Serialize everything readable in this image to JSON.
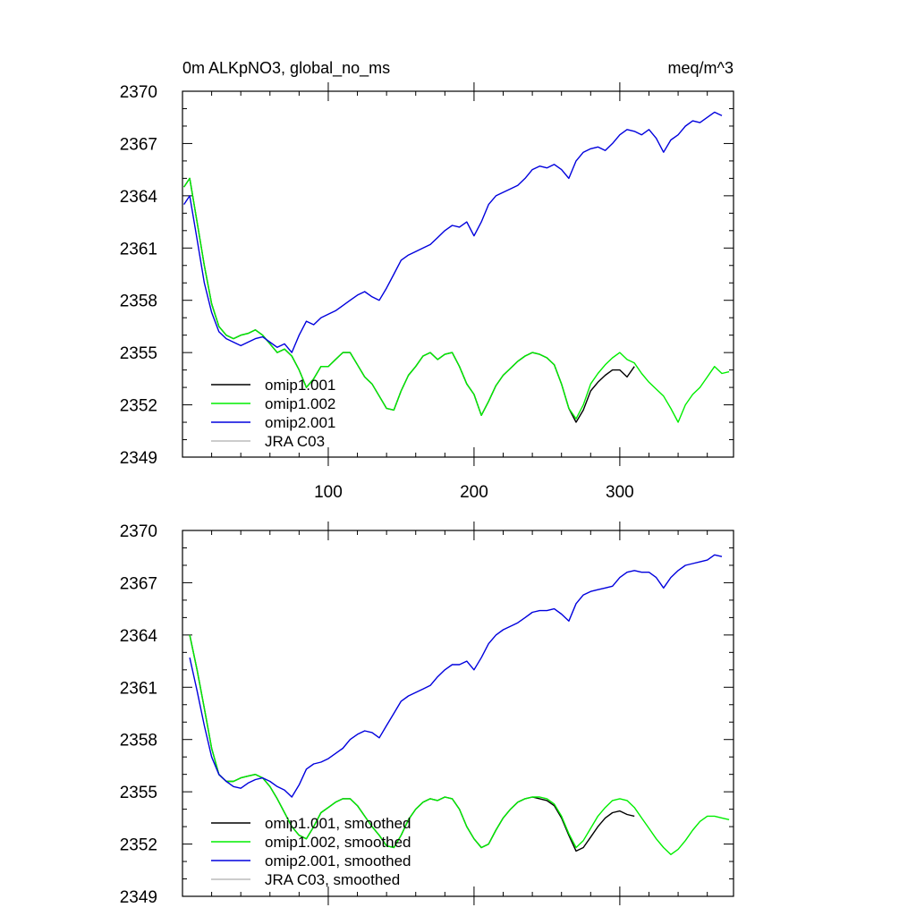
{
  "chart_data": [
    {
      "type": "line",
      "title": "0m ALKpNO3, global_no_ms",
      "units": "meq/m^3",
      "xlabel": "",
      "ylabel": "",
      "xlim": [
        0,
        378
      ],
      "ylim": [
        2349,
        2370
      ],
      "xticks": [
        100,
        200,
        300
      ],
      "xtick_labels": [
        "100",
        "200",
        "300"
      ],
      "yticks": [
        2349,
        2352,
        2355,
        2358,
        2361,
        2364,
        2367,
        2370
      ],
      "ytick_labels": [
        "2349",
        "2352",
        "2355",
        "2358",
        "2361",
        "2364",
        "2367",
        "2370"
      ],
      "legend_position": "bottom-left",
      "series": [
        {
          "name": "omip1.001",
          "color": "#000000",
          "x": [
            1,
            5,
            10,
            15,
            20,
            25,
            30,
            35,
            40,
            45,
            50,
            55,
            60,
            65,
            70,
            75,
            80,
            85,
            90,
            95,
            100,
            105,
            110,
            115,
            120,
            125,
            130,
            135,
            140,
            145,
            150,
            155,
            160,
            165,
            170,
            175,
            180,
            185,
            190,
            195,
            200,
            205,
            210,
            215,
            220,
            225,
            230,
            235,
            240,
            245,
            250,
            255,
            260,
            265,
            270,
            275,
            280,
            285,
            290,
            295,
            300,
            305,
            310
          ],
          "values": [
            2364.5,
            2365.0,
            2362.5,
            2360.0,
            2357.8,
            2356.5,
            2356.0,
            2355.8,
            2356.0,
            2356.1,
            2356.3,
            2356.0,
            2355.5,
            2355.0,
            2355.2,
            2354.8,
            2354.0,
            2353.0,
            2353.5,
            2354.2,
            2354.2,
            2354.6,
            2355.0,
            2355.0,
            2354.3,
            2353.6,
            2353.2,
            2352.5,
            2351.8,
            2351.7,
            2352.8,
            2353.7,
            2354.2,
            2354.8,
            2355.0,
            2354.6,
            2354.9,
            2355.0,
            2354.2,
            2353.2,
            2352.6,
            2351.4,
            2352.2,
            2353.1,
            2353.7,
            2354.1,
            2354.5,
            2354.8,
            2355.0,
            2354.9,
            2354.7,
            2354.3,
            2353.2,
            2351.8,
            2351.0,
            2351.7,
            2352.8,
            2353.3,
            2353.7,
            2354.0,
            2354.0,
            2353.6,
            2354.2
          ]
        },
        {
          "name": "omip1.002",
          "color": "#00ee00",
          "x": [
            1,
            5,
            10,
            15,
            20,
            25,
            30,
            35,
            40,
            45,
            50,
            55,
            60,
            65,
            70,
            75,
            80,
            85,
            90,
            95,
            100,
            105,
            110,
            115,
            120,
            125,
            130,
            135,
            140,
            145,
            150,
            155,
            160,
            165,
            170,
            175,
            180,
            185,
            190,
            195,
            200,
            205,
            210,
            215,
            220,
            225,
            230,
            235,
            240,
            245,
            250,
            255,
            260,
            265,
            270,
            275,
            280,
            285,
            290,
            295,
            300,
            305,
            310,
            315,
            320,
            325,
            330,
            335,
            340,
            345,
            350,
            355,
            360,
            365,
            370,
            375
          ],
          "values": [
            2364.5,
            2365.0,
            2362.5,
            2360.0,
            2357.8,
            2356.5,
            2356.0,
            2355.8,
            2356.0,
            2356.1,
            2356.3,
            2356.0,
            2355.5,
            2355.0,
            2355.2,
            2354.8,
            2354.0,
            2353.0,
            2353.5,
            2354.2,
            2354.2,
            2354.6,
            2355.0,
            2355.0,
            2354.3,
            2353.6,
            2353.2,
            2352.5,
            2351.8,
            2351.7,
            2352.8,
            2353.7,
            2354.2,
            2354.8,
            2355.0,
            2354.6,
            2354.9,
            2355.0,
            2354.2,
            2353.2,
            2352.6,
            2351.4,
            2352.2,
            2353.1,
            2353.7,
            2354.1,
            2354.5,
            2354.8,
            2355.0,
            2354.9,
            2354.7,
            2354.3,
            2353.2,
            2351.8,
            2351.2,
            2352.0,
            2353.2,
            2353.8,
            2354.3,
            2354.7,
            2355.0,
            2354.6,
            2354.4,
            2353.8,
            2353.3,
            2352.9,
            2352.5,
            2351.8,
            2351.0,
            2352.0,
            2352.6,
            2353.0,
            2353.6,
            2354.2,
            2353.8,
            2353.9
          ]
        },
        {
          "name": "omip2.001",
          "color": "#0000dd",
          "x": [
            1,
            5,
            10,
            15,
            20,
            25,
            30,
            35,
            40,
            45,
            50,
            55,
            60,
            65,
            70,
            75,
            80,
            85,
            90,
            95,
            100,
            105,
            110,
            115,
            120,
            125,
            130,
            135,
            140,
            145,
            150,
            155,
            160,
            165,
            170,
            175,
            180,
            185,
            190,
            195,
            200,
            205,
            210,
            215,
            220,
            225,
            230,
            235,
            240,
            245,
            250,
            255,
            260,
            265,
            270,
            275,
            280,
            285,
            290,
            295,
            300,
            305,
            310,
            315,
            320,
            325,
            330,
            335,
            340,
            345,
            350,
            355,
            360,
            365,
            370
          ],
          "values": [
            2363.5,
            2364.0,
            2361.5,
            2359.0,
            2357.3,
            2356.2,
            2355.8,
            2355.6,
            2355.4,
            2355.6,
            2355.8,
            2355.9,
            2355.6,
            2355.3,
            2355.5,
            2355.0,
            2356.0,
            2356.8,
            2356.6,
            2357.0,
            2357.2,
            2357.4,
            2357.7,
            2358.0,
            2358.3,
            2358.5,
            2358.2,
            2358.0,
            2358.7,
            2359.5,
            2360.3,
            2360.6,
            2360.8,
            2361.0,
            2361.2,
            2361.6,
            2362.0,
            2362.3,
            2362.2,
            2362.5,
            2361.7,
            2362.5,
            2363.5,
            2364.0,
            2364.2,
            2364.4,
            2364.6,
            2365.0,
            2365.5,
            2365.7,
            2365.6,
            2365.8,
            2365.5,
            2365.0,
            2366.0,
            2366.5,
            2366.7,
            2366.8,
            2366.6,
            2367.0,
            2367.5,
            2367.8,
            2367.7,
            2367.5,
            2367.8,
            2367.3,
            2366.5,
            2367.2,
            2367.5,
            2368.0,
            2368.3,
            2368.2,
            2368.5,
            2368.8,
            2368.6
          ]
        },
        {
          "name": "JRA C03",
          "color": "#bbbbbb",
          "x": [],
          "values": []
        }
      ]
    },
    {
      "type": "line",
      "title": "",
      "xlabel": "",
      "ylabel": "",
      "xlim": [
        0,
        378
      ],
      "ylim": [
        2349,
        2370
      ],
      "xticks": [
        100,
        200,
        300
      ],
      "xtick_labels": [],
      "yticks": [
        2349,
        2352,
        2355,
        2358,
        2361,
        2364,
        2367,
        2370
      ],
      "ytick_labels": [
        "2349",
        "2352",
        "2355",
        "2358",
        "2361",
        "2364",
        "2367",
        "2370"
      ],
      "legend_position": "bottom-left",
      "series": [
        {
          "name": "omip1.001, smoothed",
          "color": "#000000",
          "x": [
            5,
            10,
            15,
            20,
            25,
            30,
            35,
            40,
            45,
            50,
            55,
            60,
            65,
            70,
            75,
            80,
            85,
            90,
            95,
            100,
            105,
            110,
            115,
            120,
            125,
            130,
            135,
            140,
            145,
            150,
            155,
            160,
            165,
            170,
            175,
            180,
            185,
            190,
            195,
            200,
            205,
            210,
            215,
            220,
            225,
            230,
            235,
            240,
            245,
            250,
            255,
            260,
            265,
            270,
            275,
            280,
            285,
            290,
            295,
            300,
            305,
            310
          ],
          "values": [
            2364.0,
            2362.0,
            2359.8,
            2357.5,
            2356.0,
            2355.6,
            2355.6,
            2355.8,
            2355.9,
            2356.0,
            2355.8,
            2355.3,
            2354.6,
            2353.8,
            2353.0,
            2352.5,
            2352.3,
            2353.0,
            2353.8,
            2354.1,
            2354.4,
            2354.6,
            2354.6,
            2354.2,
            2353.6,
            2353.0,
            2352.5,
            2351.9,
            2351.8,
            2352.5,
            2353.4,
            2354.0,
            2354.4,
            2354.6,
            2354.5,
            2354.7,
            2354.6,
            2354.0,
            2353.0,
            2352.3,
            2351.8,
            2352.0,
            2352.8,
            2353.5,
            2354.0,
            2354.4,
            2354.6,
            2354.7,
            2354.6,
            2354.5,
            2354.2,
            2353.5,
            2352.5,
            2351.6,
            2351.8,
            2352.4,
            2353.0,
            2353.5,
            2353.8,
            2353.9,
            2353.7,
            2353.6
          ]
        },
        {
          "name": "omip1.002, smoothed",
          "color": "#00ee00",
          "x": [
            5,
            10,
            15,
            20,
            25,
            30,
            35,
            40,
            45,
            50,
            55,
            60,
            65,
            70,
            75,
            80,
            85,
            90,
            95,
            100,
            105,
            110,
            115,
            120,
            125,
            130,
            135,
            140,
            145,
            150,
            155,
            160,
            165,
            170,
            175,
            180,
            185,
            190,
            195,
            200,
            205,
            210,
            215,
            220,
            225,
            230,
            235,
            240,
            245,
            250,
            255,
            260,
            265,
            270,
            275,
            280,
            285,
            290,
            295,
            300,
            305,
            310,
            315,
            320,
            325,
            330,
            335,
            340,
            345,
            350,
            355,
            360,
            365,
            370,
            375
          ],
          "values": [
            2364.0,
            2362.0,
            2359.8,
            2357.5,
            2356.0,
            2355.6,
            2355.6,
            2355.8,
            2355.9,
            2356.0,
            2355.8,
            2355.3,
            2354.6,
            2353.8,
            2353.0,
            2352.5,
            2352.3,
            2353.0,
            2353.8,
            2354.1,
            2354.4,
            2354.6,
            2354.6,
            2354.2,
            2353.6,
            2353.0,
            2352.5,
            2351.9,
            2351.8,
            2352.5,
            2353.4,
            2354.0,
            2354.4,
            2354.6,
            2354.5,
            2354.7,
            2354.6,
            2354.0,
            2353.0,
            2352.3,
            2351.8,
            2352.0,
            2352.8,
            2353.5,
            2354.0,
            2354.4,
            2354.6,
            2354.7,
            2354.7,
            2354.6,
            2354.3,
            2353.6,
            2352.6,
            2351.8,
            2352.2,
            2352.9,
            2353.6,
            2354.1,
            2354.5,
            2354.6,
            2354.5,
            2354.1,
            2353.5,
            2352.9,
            2352.3,
            2351.8,
            2351.4,
            2351.7,
            2352.2,
            2352.8,
            2353.3,
            2353.6,
            2353.6,
            2353.5,
            2353.4
          ]
        },
        {
          "name": "omip2.001, smoothed",
          "color": "#0000dd",
          "x": [
            5,
            10,
            15,
            20,
            25,
            30,
            35,
            40,
            45,
            50,
            55,
            60,
            65,
            70,
            75,
            80,
            85,
            90,
            95,
            100,
            105,
            110,
            115,
            120,
            125,
            130,
            135,
            140,
            145,
            150,
            155,
            160,
            165,
            170,
            175,
            180,
            185,
            190,
            195,
            200,
            205,
            210,
            215,
            220,
            225,
            230,
            235,
            240,
            245,
            250,
            255,
            260,
            265,
            270,
            275,
            280,
            285,
            290,
            295,
            300,
            305,
            310,
            315,
            320,
            325,
            330,
            335,
            340,
            345,
            350,
            355,
            360,
            365,
            370
          ],
          "values": [
            2362.7,
            2360.8,
            2358.8,
            2357.0,
            2356.0,
            2355.6,
            2355.3,
            2355.2,
            2355.5,
            2355.7,
            2355.8,
            2355.6,
            2355.3,
            2355.1,
            2354.7,
            2355.4,
            2356.3,
            2356.6,
            2356.7,
            2356.9,
            2357.2,
            2357.5,
            2358.0,
            2358.3,
            2358.5,
            2358.4,
            2358.1,
            2358.8,
            2359.5,
            2360.2,
            2360.5,
            2360.7,
            2360.9,
            2361.1,
            2361.6,
            2362.0,
            2362.3,
            2362.3,
            2362.5,
            2362.0,
            2362.7,
            2363.5,
            2364.0,
            2364.3,
            2364.5,
            2364.7,
            2365.0,
            2365.3,
            2365.4,
            2365.4,
            2365.5,
            2365.2,
            2364.8,
            2365.8,
            2366.3,
            2366.5,
            2366.6,
            2366.7,
            2366.8,
            2367.3,
            2367.6,
            2367.7,
            2367.6,
            2367.6,
            2367.3,
            2366.7,
            2367.3,
            2367.7,
            2368.0,
            2368.1,
            2368.2,
            2368.3,
            2368.6,
            2368.5
          ]
        },
        {
          "name": "JRA C03, smoothed",
          "color": "#bbbbbb",
          "x": [],
          "values": []
        }
      ]
    }
  ]
}
